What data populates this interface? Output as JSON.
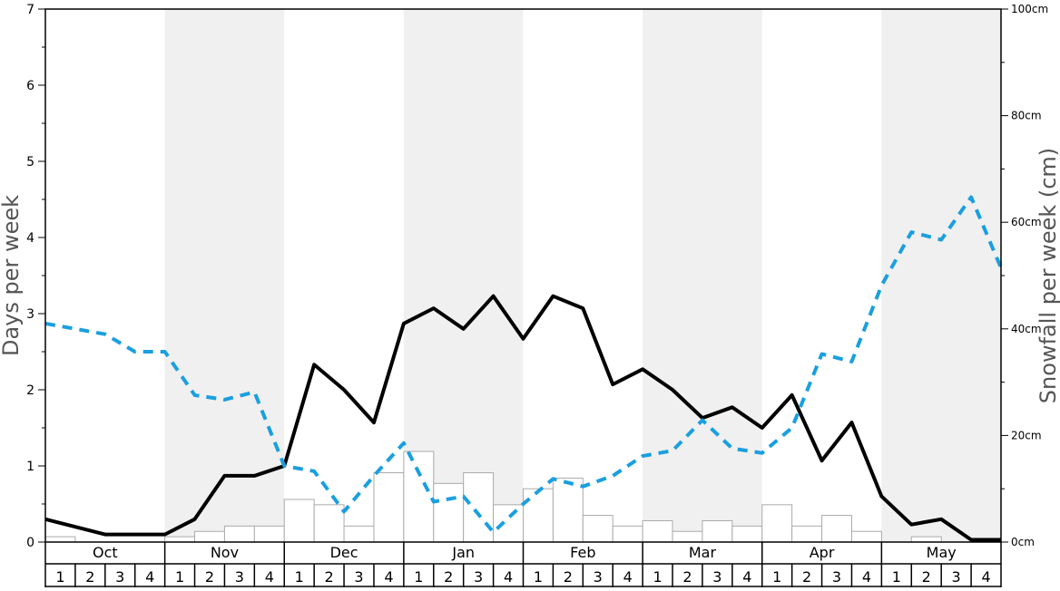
{
  "chart_data": {
    "type": "bar",
    "y_left": {
      "label": "Days per week",
      "range": [
        0,
        7
      ],
      "ticks": [
        "0",
        "1",
        "2",
        "3",
        "4",
        "5",
        "6",
        "7"
      ]
    },
    "y_right": {
      "label": "Snowfall per week (cm)",
      "range": [
        0,
        100
      ],
      "ticks": [
        "0cm",
        "20cm",
        "40cm",
        "60cm",
        "80cm",
        "100cm"
      ]
    },
    "months": [
      "Oct",
      "Nov",
      "Dec",
      "Jan",
      "Feb",
      "Mar",
      "Apr",
      "May"
    ],
    "weeks": [
      "1",
      "2",
      "3",
      "4"
    ],
    "shaded_months": [
      "Nov",
      "Jan",
      "Mar",
      "May"
    ],
    "grid": false,
    "legend": "none",
    "colors": {
      "bars_stroke": "#aaaaaa",
      "bars_fill": "#ffffff",
      "black_line": "#000000",
      "dashed_line": "#1a9fe0",
      "shade": "#f0f0f0"
    },
    "series": [
      {
        "kind": "bar",
        "axis": "right",
        "values": [
          1,
          0,
          0,
          0,
          1,
          2,
          3,
          3,
          8,
          7,
          3,
          13,
          17,
          11,
          13,
          7,
          10,
          12,
          5,
          3,
          4,
          2,
          4,
          3,
          7,
          3,
          5,
          2,
          0,
          1,
          0,
          0
        ]
      },
      {
        "kind": "line",
        "style": "solid",
        "axis": "left",
        "values": [
          0.3,
          0.2,
          0.1,
          0.1,
          0.1,
          0.3,
          0.87,
          0.87,
          1.0,
          2.33,
          2.0,
          1.57,
          2.87,
          3.07,
          2.8,
          3.23,
          2.67,
          3.23,
          3.07,
          2.07,
          2.27,
          2.0,
          1.63,
          1.77,
          1.5,
          1.93,
          1.07,
          1.57,
          0.6,
          0.23,
          0.3,
          0.03,
          0.03
        ]
      },
      {
        "kind": "line",
        "style": "dashed",
        "axis": "left",
        "values": [
          2.87,
          2.8,
          2.73,
          2.5,
          2.5,
          1.93,
          1.87,
          1.97,
          1.0,
          0.93,
          0.4,
          0.87,
          1.3,
          0.53,
          0.6,
          0.13,
          0.5,
          0.83,
          0.73,
          0.87,
          1.13,
          1.2,
          1.6,
          1.23,
          1.17,
          1.5,
          2.47,
          2.37,
          3.37,
          4.07,
          3.97,
          4.53,
          3.6
        ]
      }
    ]
  }
}
